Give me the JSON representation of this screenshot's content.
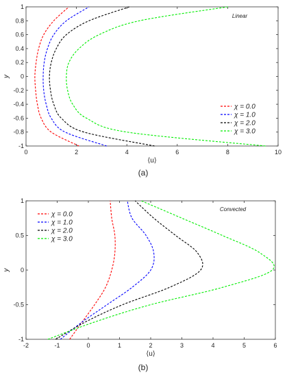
{
  "chart_data": [
    {
      "type": "line",
      "panel_label": "(a)",
      "annotation": "Linear",
      "xlabel": "⟨u⟩",
      "ylabel": "y",
      "xlim": [
        0,
        10
      ],
      "ylim": [
        -1,
        1
      ],
      "xticks": [
        "0",
        "2",
        "4",
        "6",
        "8",
        "10"
      ],
      "yticks": [
        "-1",
        "-0.8",
        "-0.6",
        "-0.4",
        "-0.2",
        "0",
        "0.2",
        "0.4",
        "0.6",
        "0.8",
        "1"
      ],
      "legend_position": "bottom-right",
      "grid": false,
      "line_style": "dashed",
      "series": [
        {
          "name": "χ = 0.0",
          "color": "#ff0000",
          "y": [
            -1,
            -0.8,
            -0.6,
            -0.4,
            -0.2,
            0,
            0.2,
            0.4,
            0.6,
            0.8,
            1
          ],
          "x": [
            2.1,
            1.0,
            0.6,
            0.45,
            0.38,
            0.35,
            0.4,
            0.5,
            0.7,
            1.1,
            1.7
          ]
        },
        {
          "name": "χ = 1.0",
          "color": "#0000ff",
          "y": [
            -1,
            -0.8,
            -0.6,
            -0.4,
            -0.2,
            0,
            0.2,
            0.4,
            0.6,
            0.8,
            1
          ],
          "x": [
            3.2,
            1.55,
            1.0,
            0.8,
            0.7,
            0.68,
            0.72,
            0.85,
            1.1,
            1.6,
            2.5
          ]
        },
        {
          "name": "χ = 2.0",
          "color": "#000000",
          "y": [
            -1,
            -0.8,
            -0.6,
            -0.4,
            -0.2,
            0,
            0.2,
            0.4,
            0.6,
            0.8,
            1
          ],
          "x": [
            5.1,
            2.3,
            1.4,
            1.1,
            0.97,
            0.93,
            1.0,
            1.2,
            1.6,
            2.5,
            4.1
          ]
        },
        {
          "name": "χ = 3.0",
          "color": "#00ee00",
          "y": [
            -1,
            -0.8,
            -0.6,
            -0.4,
            -0.2,
            0,
            0.2,
            0.4,
            0.6,
            0.8,
            1
          ],
          "x": [
            9.5,
            4.0,
            2.4,
            1.85,
            1.65,
            1.6,
            1.7,
            2.1,
            2.9,
            4.5,
            8.0
          ]
        }
      ]
    },
    {
      "type": "line",
      "panel_label": "(b)",
      "annotation": "Convected",
      "xlabel": "⟨u⟩",
      "ylabel": "y",
      "xlim": [
        -2,
        6
      ],
      "ylim": [
        -1,
        1
      ],
      "xticks": [
        "-2",
        "-1",
        "0",
        "1",
        "2",
        "3",
        "4",
        "5",
        "6"
      ],
      "yticks": [
        "-1",
        "-0.5",
        "0",
        "0.5",
        "1"
      ],
      "legend_position": "top-left",
      "grid": false,
      "line_style": "dashed",
      "series": [
        {
          "name": "χ = 0.0",
          "color": "#ff0000",
          "y": [
            -1,
            -0.75,
            -0.5,
            -0.25,
            0,
            0.25,
            0.5,
            0.75,
            1
          ],
          "x": [
            -0.6,
            -0.2,
            0.2,
            0.55,
            0.75,
            0.85,
            0.85,
            0.75,
            0.7
          ]
        },
        {
          "name": "χ = 1.0",
          "color": "#0000ff",
          "y": [
            -1,
            -0.75,
            -0.5,
            -0.25,
            0,
            0.25,
            0.5,
            0.75,
            1
          ],
          "x": [
            -0.9,
            -0.2,
            0.6,
            1.4,
            2.0,
            2.1,
            1.85,
            1.4,
            1.25
          ]
        },
        {
          "name": "χ = 2.0",
          "color": "#000000",
          "y": [
            -1,
            -0.75,
            -0.5,
            -0.25,
            0,
            0.25,
            0.5,
            0.75,
            1
          ],
          "x": [
            -1.05,
            -0.1,
            1.1,
            2.6,
            3.6,
            3.5,
            2.8,
            2.1,
            1.5
          ]
        },
        {
          "name": "χ = 3.0",
          "color": "#00ee00",
          "y": [
            -1,
            -0.75,
            -0.5,
            -0.25,
            0,
            0.25,
            0.5,
            0.75,
            1
          ],
          "x": [
            -1.3,
            0.2,
            2.0,
            4.3,
            5.9,
            5.5,
            4.3,
            3.0,
            1.7
          ]
        }
      ]
    }
  ]
}
